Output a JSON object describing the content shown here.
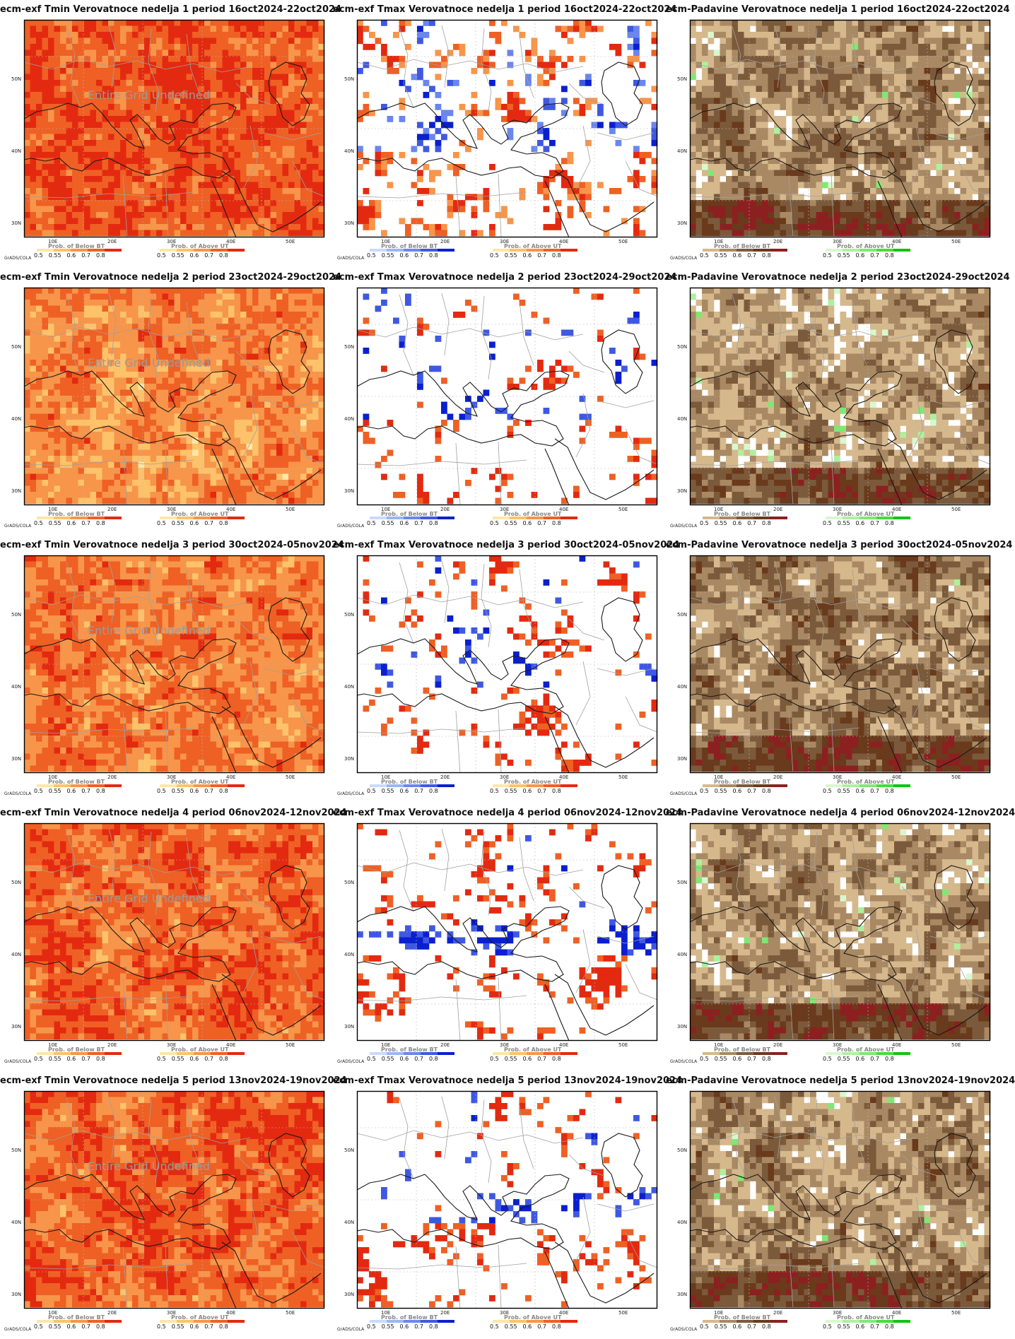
{
  "common": {
    "grads_label": "GrADS/COLA",
    "legend_values": [
      "0.5",
      "0.55",
      "0.6",
      "0.7",
      "0.8"
    ],
    "lat_ticks": [
      "50N",
      "40N",
      "30N"
    ],
    "lon_ticks": [
      "10E",
      "20E",
      "30E",
      "40E",
      "50E"
    ],
    "undefined_text": "Entire Grid Undefined"
  },
  "legend_titles": {
    "below": "Prob. of Below BT",
    "above": "Prob. of Above UT"
  },
  "colors": {
    "warm_scale": [
      "#fde7a8",
      "#fdc26a",
      "#f7954b",
      "#ef6024",
      "#e32a10"
    ],
    "cold_scale": [
      "#c9dbfb",
      "#9bb6f4",
      "#6b86ec",
      "#3f58e3",
      "#0a1fcf"
    ],
    "dry_scale": [
      "#d6b88d",
      "#a98963",
      "#7b5a3b",
      "#6a3a1c",
      "#8c2020"
    ],
    "wet_scale": [
      "#d8f7cf",
      "#aef0a0",
      "#7fe873",
      "#46dd3b",
      "#11c412"
    ]
  },
  "panels": [
    {
      "title": "ecm-exf Tmin Verovatnoce nedelja 1 period 16oct2024-22oct2024",
      "undefined": true,
      "scheme": "tmin",
      "level": 0.82
    },
    {
      "title": "ecm-exf Tmax Verovatnoce nedelja 1 period 16oct2024-22oct2024",
      "undefined": false,
      "scheme": "tmax",
      "level": 0.55
    },
    {
      "title": "ecm-Padavine Verovatnoce nedelja 1 period 16oct2024-22oct2024",
      "undefined": false,
      "scheme": "prec",
      "level": 0.8
    },
    {
      "title": "ecm-exf Tmin Verovatnoce nedelja 2 period 23oct2024-29oct2024",
      "undefined": true,
      "scheme": "tmin",
      "level": 0.65
    },
    {
      "title": "ecm-exf Tmax Verovatnoce nedelja 2 period 23oct2024-29oct2024",
      "undefined": false,
      "scheme": "tmax",
      "level": 0.3
    },
    {
      "title": "ecm-Padavine Verovatnoce nedelja 2 period 23oct2024-29oct2024",
      "undefined": false,
      "scheme": "prec",
      "level": 0.7
    },
    {
      "title": "ecm-exf Tmin Verovatnoce nedelja 3 period 30oct2024-05nov2024",
      "undefined": true,
      "scheme": "tmin",
      "level": 0.7
    },
    {
      "title": "ecm-exf Tmax Verovatnoce nedelja 3 period 30oct2024-05nov2024",
      "undefined": false,
      "scheme": "tmax",
      "level": 0.35
    },
    {
      "title": "ecm-Padavine Verovatnoce nedelja 3 period 30oct2024-05nov2024",
      "undefined": false,
      "scheme": "prec",
      "level": 0.85
    },
    {
      "title": "ecm-exf Tmin Verovatnoce nedelja 4 period 06nov2024-12nov2024",
      "undefined": true,
      "scheme": "tmin",
      "level": 0.75
    },
    {
      "title": "ecm-exf Tmax Verovatnoce nedelja 4 period 06nov2024-12nov2024",
      "undefined": false,
      "scheme": "tmax",
      "level": 0.35
    },
    {
      "title": "ecm-Padavine Verovatnoce nedelja 4 period 06nov2024-12nov2024",
      "undefined": false,
      "scheme": "prec",
      "level": 0.75
    },
    {
      "title": "ecm-exf Tmin Verovatnoce nedelja 5 period 13nov2024-19nov2024",
      "undefined": true,
      "scheme": "tmin",
      "level": 0.78
    },
    {
      "title": "ecm-exf Tmax Verovatnoce nedelja 5 period 13nov2024-19nov2024",
      "undefined": false,
      "scheme": "tmax",
      "level": 0.35
    },
    {
      "title": "ecm-Padavine Verovatnoce nedelja 5 period 13nov2024-19nov2024",
      "undefined": false,
      "scheme": "prec",
      "level": 0.78
    }
  ]
}
